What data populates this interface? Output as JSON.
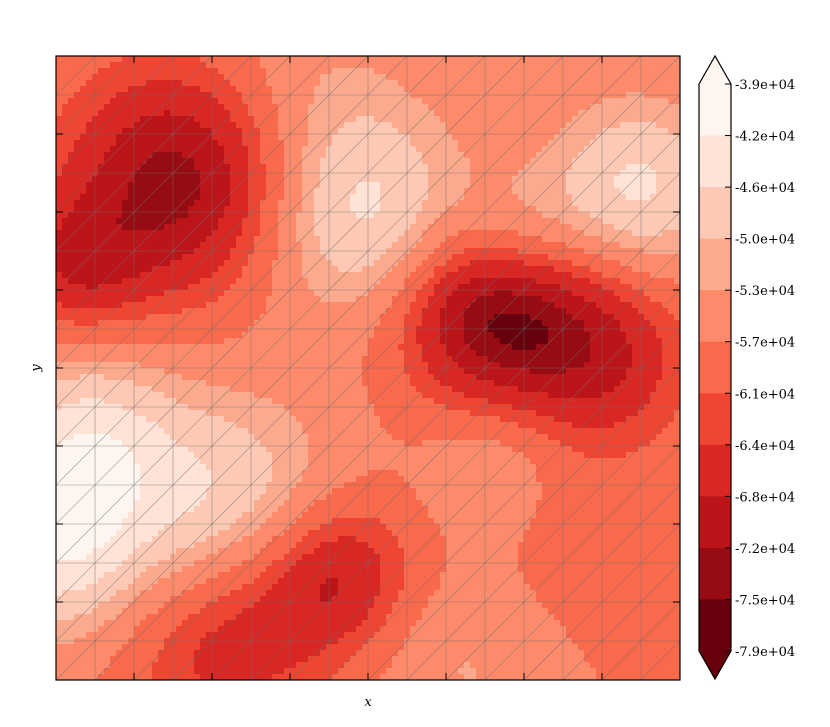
{
  "chart_data": {
    "type": "heatmap",
    "subtype": "filled-contour",
    "xlabel": "x",
    "ylabel": "y",
    "grid": true,
    "overlay": "triangular-mesh",
    "colormap": "Reds_r",
    "colorbar": {
      "position": "right",
      "extend": "both",
      "tick_labels": [
        "-3.9e+04",
        "-4.2e+04",
        "-4.6e+04",
        "-5.0e+04",
        "-5.3e+04",
        "-5.7e+04",
        "-6.1e+04",
        "-6.4e+04",
        "-6.8e+04",
        "-7.2e+04",
        "-7.5e+04",
        "-7.9e+04"
      ],
      "levels": [
        -39000,
        -42000,
        -46000,
        -50000,
        -53000,
        -57000,
        -61000,
        -64000,
        -68000,
        -72000,
        -75000,
        -79000
      ],
      "colors": [
        "#fff5f0",
        "#fee3d6",
        "#fdc9b4",
        "#fcaa8e",
        "#fc8a6b",
        "#f9694c",
        "#ef4533",
        "#d92723",
        "#bb151a",
        "#970b13",
        "#67000d"
      ]
    },
    "field": {
      "base": -57000,
      "features": [
        {
          "cx": 0.0,
          "cy": 0.78,
          "amp": 14000,
          "r": 0.11
        },
        {
          "cx": 0.05,
          "cy": 0.6,
          "amp": 10000,
          "r": 0.1
        },
        {
          "cx": 0.27,
          "cy": 0.73,
          "amp": 12000,
          "r": 0.13
        },
        {
          "cx": 0.5,
          "cy": 0.26,
          "amp": 13000,
          "r": 0.12
        },
        {
          "cx": 0.74,
          "cy": 0.29,
          "amp": 8000,
          "r": 0.08
        },
        {
          "cx": 0.93,
          "cy": 0.21,
          "amp": 12000,
          "r": 0.1
        },
        {
          "cx": 0.4,
          "cy": 0.06,
          "amp": 4000,
          "r": 0.12
        },
        {
          "cx": 0.66,
          "cy": 0.96,
          "amp": 5000,
          "r": 0.12
        },
        {
          "cx": 0.7,
          "cy": 0.66,
          "amp": 5000,
          "r": 0.08
        },
        {
          "cx": 0.2,
          "cy": 0.2,
          "amp": -17000,
          "r": 0.13
        },
        {
          "cx": 0.7,
          "cy": 0.4,
          "amp": -20000,
          "r": 0.11
        },
        {
          "cx": 0.88,
          "cy": 0.48,
          "amp": -10000,
          "r": 0.1
        },
        {
          "cx": 0.27,
          "cy": 0.92,
          "amp": -11000,
          "r": 0.12
        },
        {
          "cx": 0.45,
          "cy": 0.83,
          "amp": -12000,
          "r": 0.09
        },
        {
          "cx": 0.03,
          "cy": 0.34,
          "amp": -9000,
          "r": 0.08
        },
        {
          "cx": 0.82,
          "cy": 0.8,
          "amp": -3000,
          "r": 0.14
        }
      ]
    }
  }
}
